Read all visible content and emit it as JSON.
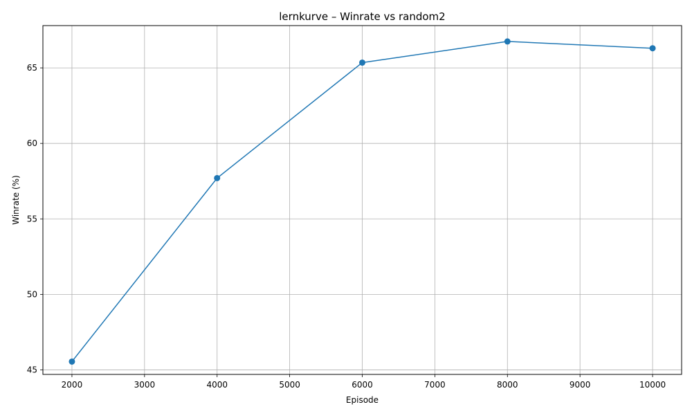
{
  "chart_data": {
    "type": "line",
    "title": "lernkurve – Winrate vs random2",
    "xlabel": "Episode",
    "ylabel": "Winrate (%)",
    "xlim": [
      1600,
      10400
    ],
    "ylim": [
      44.7,
      67.8
    ],
    "x_ticks": [
      2000,
      3000,
      4000,
      5000,
      6000,
      7000,
      8000,
      9000,
      10000
    ],
    "y_ticks": [
      45,
      50,
      55,
      60,
      65
    ],
    "grid": true,
    "legend": "none",
    "series": [
      {
        "color": "#1f77b4",
        "marker": "circle",
        "x": [
          2000,
          4000,
          6000,
          8000,
          10000
        ],
        "y": [
          45.55,
          57.7,
          65.35,
          66.75,
          66.3
        ]
      }
    ]
  }
}
